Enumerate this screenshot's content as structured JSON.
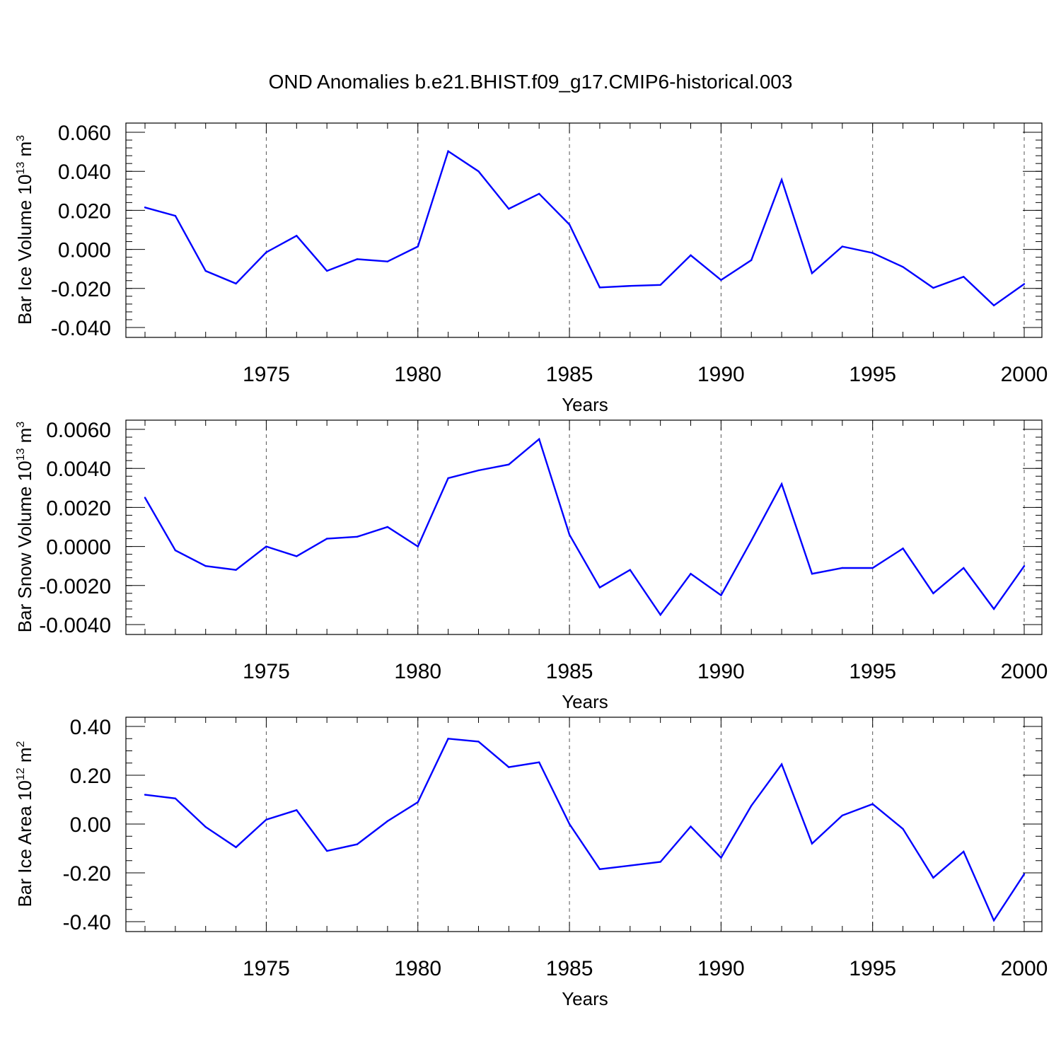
{
  "chart_data": {
    "title": "OND Anomalies b.e21.BHIST.f09_g17.CMIP6-historical.003",
    "panels": [
      {
        "type": "line",
        "ylabel": {
          "base": "Bar Ice Volume 10",
          "exp": "13",
          "unit": " m",
          "unit_exp": "3"
        },
        "xlabel": "Years",
        "x": [
          1971,
          1972,
          1973,
          1974,
          1975,
          1976,
          1977,
          1978,
          1979,
          1980,
          1981,
          1982,
          1983,
          1984,
          1985,
          1986,
          1987,
          1988,
          1989,
          1990,
          1991,
          1992,
          1993,
          1994,
          1995,
          1996,
          1997,
          1998,
          1999,
          2000
        ],
        "values": [
          0.0215,
          0.0172,
          -0.011,
          -0.0175,
          -0.0015,
          0.007,
          -0.011,
          -0.005,
          -0.0062,
          0.0015,
          0.0503,
          0.04,
          0.0208,
          0.0285,
          0.0127,
          -0.0195,
          -0.0187,
          -0.0182,
          -0.003,
          -0.0157,
          -0.0055,
          0.0357,
          -0.0122,
          0.0015,
          -0.0018,
          -0.009,
          -0.0197,
          -0.014,
          -0.0287,
          -0.0177
        ],
        "ylim": [
          -0.04,
          0.06
        ],
        "yticks": [
          -0.04,
          -0.02,
          0.0,
          0.02,
          0.04,
          0.06
        ],
        "ytick_labels": [
          "-0.040",
          "-0.020",
          "0.000",
          "0.020",
          "0.040",
          "0.060"
        ],
        "ytick_minor_step": 0.004
      },
      {
        "type": "line",
        "ylabel": {
          "base": "Bar Snow Volume 10",
          "exp": "13",
          "unit": " m",
          "unit_exp": "3"
        },
        "xlabel": "Years",
        "x": [
          1971,
          1972,
          1973,
          1974,
          1975,
          1976,
          1977,
          1978,
          1979,
          1980,
          1981,
          1982,
          1983,
          1984,
          1985,
          1986,
          1987,
          1988,
          1989,
          1990,
          1991,
          1992,
          1993,
          1994,
          1995,
          1996,
          1997,
          1998,
          1999,
          2000
        ],
        "values": [
          0.0025,
          -0.0002,
          -0.001,
          -0.0012,
          0.0,
          -0.0005,
          0.0004,
          0.0005,
          0.001,
          0.0,
          0.0035,
          0.0039,
          0.0042,
          0.0055,
          0.0006,
          -0.0021,
          -0.0012,
          -0.0035,
          -0.0014,
          -0.0025,
          0.0003,
          0.0032,
          -0.0014,
          -0.0011,
          -0.0011,
          -0.0001,
          -0.0024,
          -0.0011,
          -0.0032,
          -0.001
        ],
        "ylim": [
          -0.004,
          0.006
        ],
        "yticks": [
          -0.004,
          -0.002,
          0.0,
          0.002,
          0.004,
          0.006
        ],
        "ytick_labels": [
          "-0.0040",
          "-0.0020",
          "0.0000",
          "0.0020",
          "0.0040",
          "0.0060"
        ],
        "ytick_minor_step": 0.0004
      },
      {
        "type": "line",
        "ylabel": {
          "base": "Bar Ice Area 10",
          "exp": "12",
          "unit": " m",
          "unit_exp": "2"
        },
        "xlabel": "Years",
        "x": [
          1971,
          1972,
          1973,
          1974,
          1975,
          1976,
          1977,
          1978,
          1979,
          1980,
          1981,
          1982,
          1983,
          1984,
          1985,
          1986,
          1987,
          1988,
          1989,
          1990,
          1991,
          1992,
          1993,
          1994,
          1995,
          1996,
          1997,
          1998,
          1999,
          2000
        ],
        "values": [
          0.12,
          0.105,
          -0.012,
          -0.095,
          0.018,
          0.057,
          -0.11,
          -0.083,
          0.012,
          0.09,
          0.35,
          0.338,
          0.233,
          0.253,
          0.0,
          -0.185,
          -0.17,
          -0.155,
          -0.01,
          -0.138,
          0.075,
          0.245,
          -0.08,
          0.035,
          0.082,
          -0.02,
          -0.22,
          -0.113,
          -0.395,
          -0.205
        ],
        "ylim": [
          -0.4,
          0.4
        ],
        "yticks": [
          -0.4,
          -0.2,
          0.0,
          0.2,
          0.4
        ],
        "ytick_labels": [
          "-0.40",
          "-0.20",
          "0.00",
          "0.20",
          "0.40"
        ],
        "ytick_minor_step": 0.05
      }
    ],
    "xlim": [
      1971,
      2000
    ],
    "xticks": [
      1975,
      1980,
      1985,
      1990,
      1995,
      2000
    ],
    "xtick_labels": [
      "1975",
      "1980",
      "1985",
      "1990",
      "1995",
      "2000"
    ],
    "grid_x": "dashed at major ticks",
    "series_color": "#0000ff"
  }
}
